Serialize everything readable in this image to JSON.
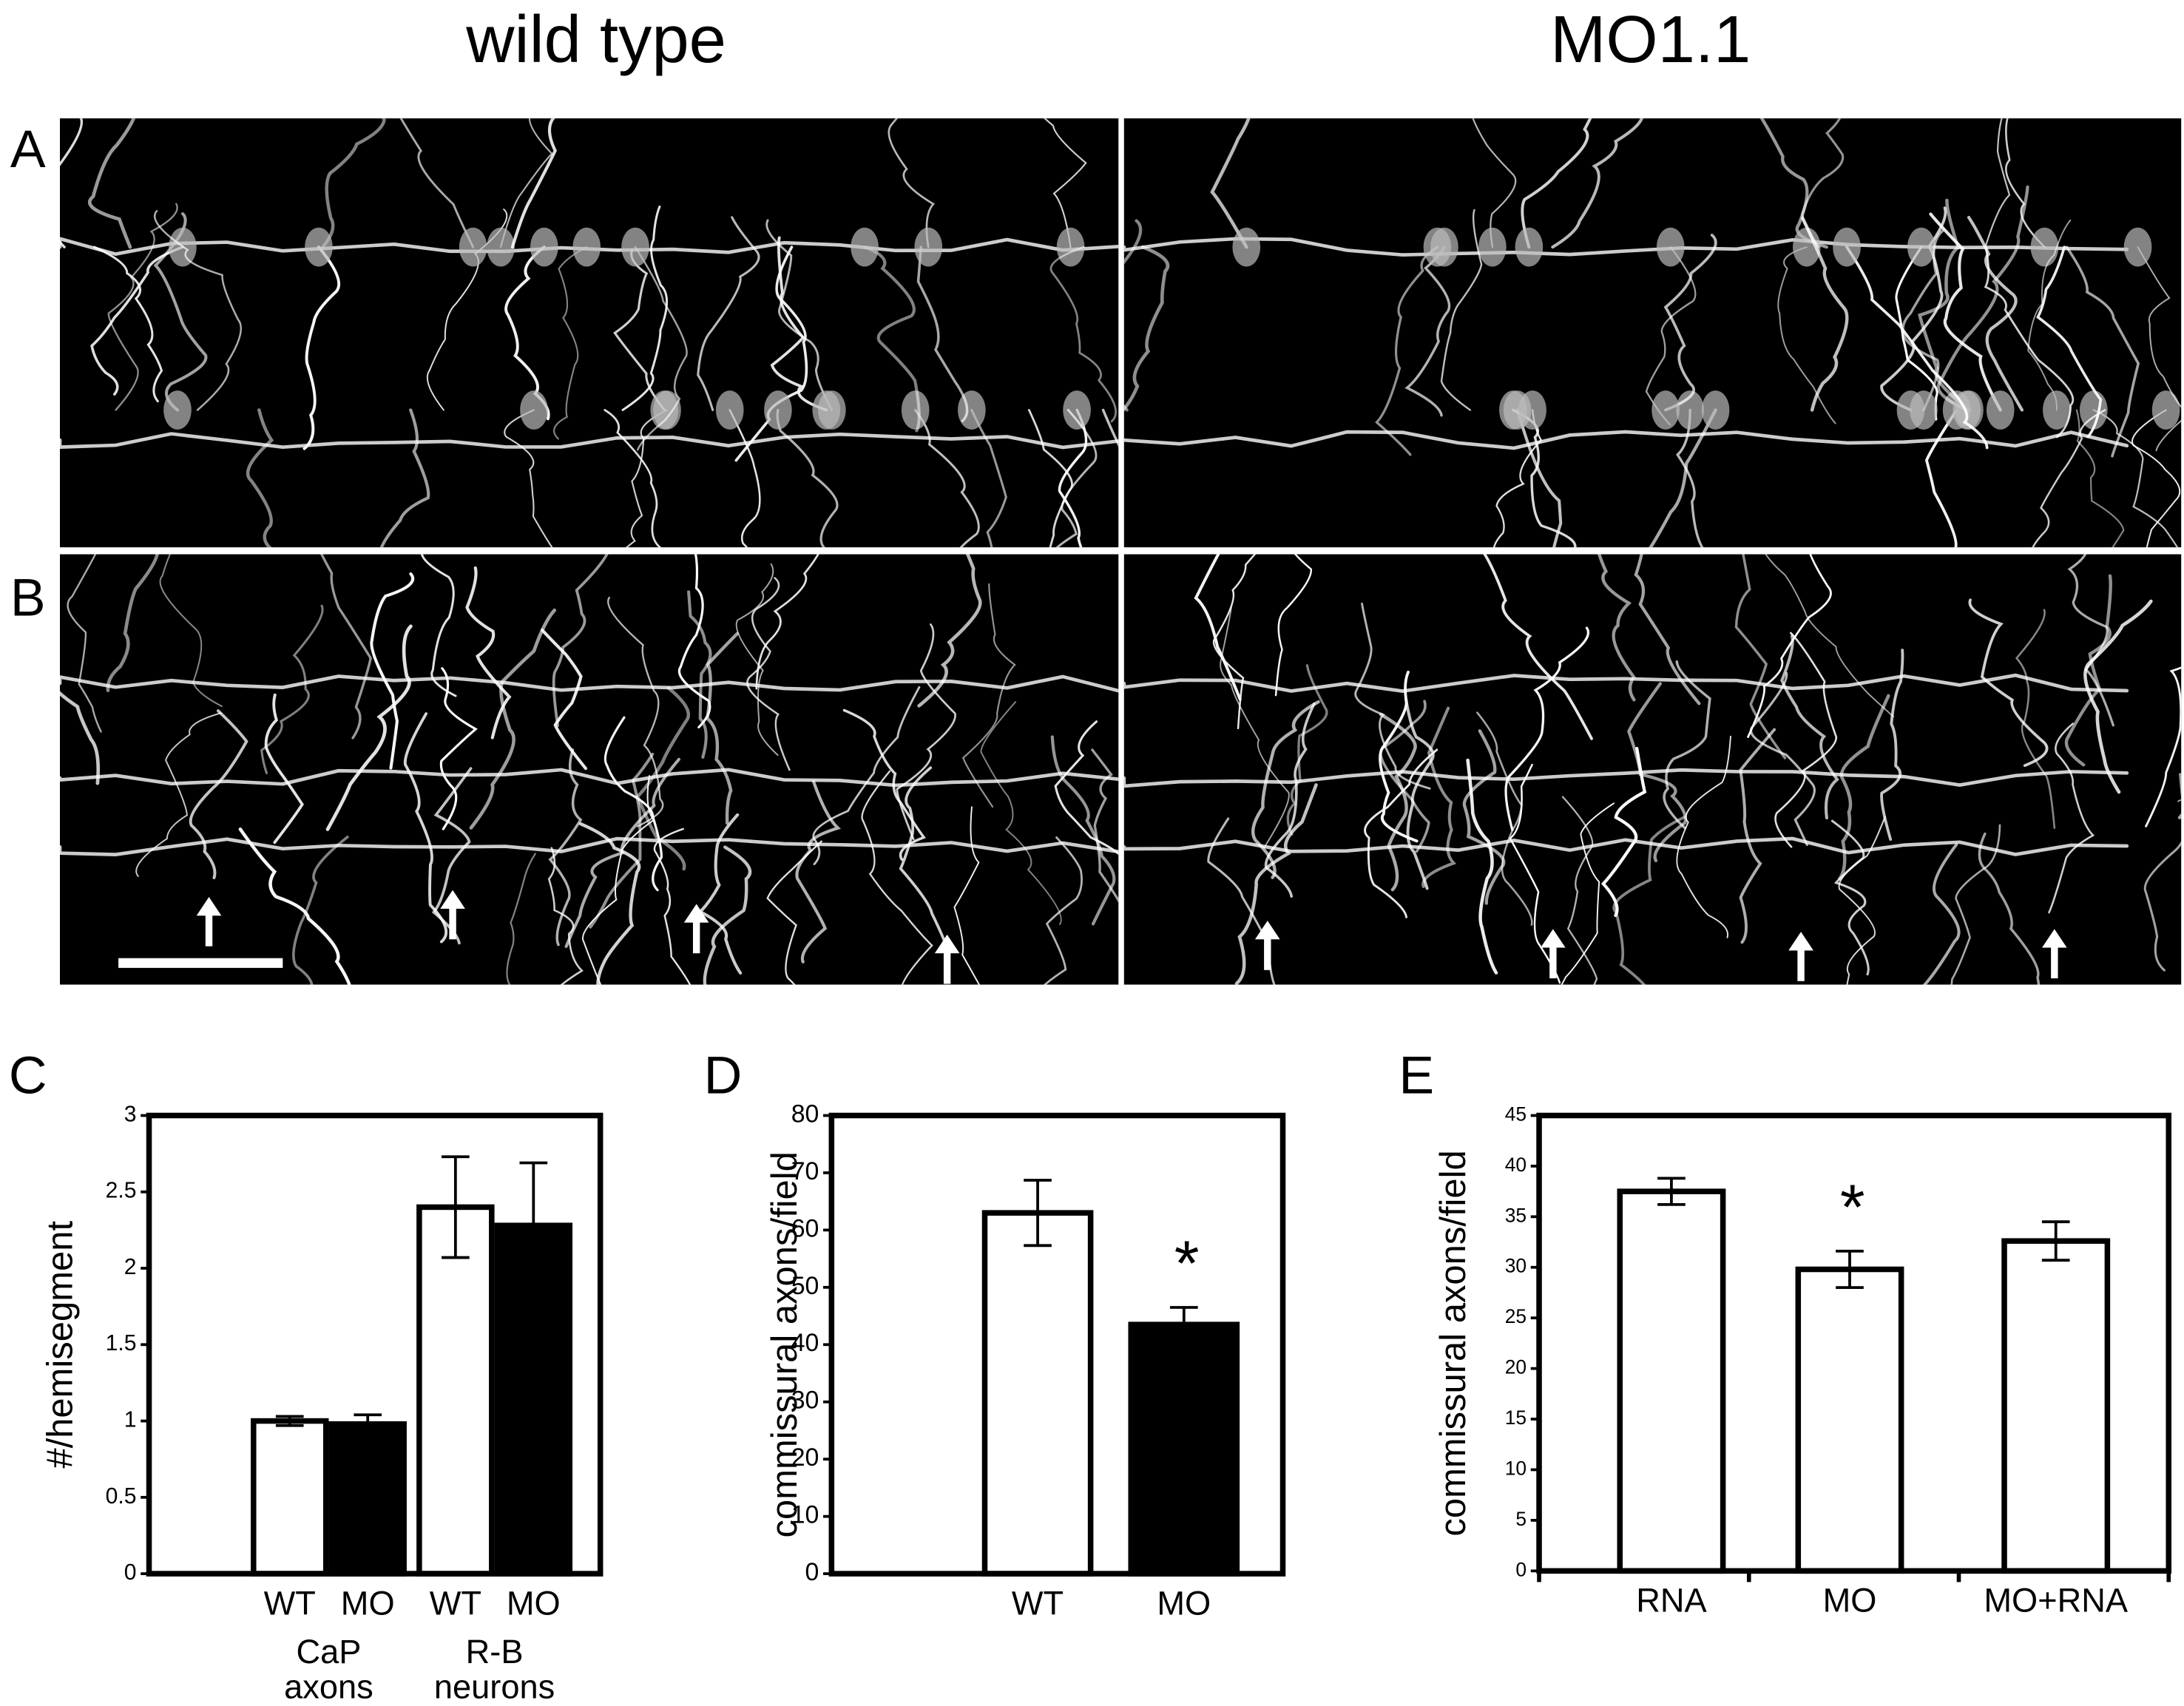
{
  "figure": {
    "columns": [
      "wild type",
      "MO1.1"
    ],
    "panels": [
      "A",
      "B"
    ]
  },
  "chart_data": [
    {
      "type": "bar",
      "panel": "C",
      "ylabel": "#/hemisegment",
      "categories": [
        "WT",
        "MO",
        "WT",
        "MO"
      ],
      "groups": [
        [
          "CaP",
          "axons"
        ],
        [
          "R-B",
          "neurons"
        ]
      ],
      "values": [
        1.0,
        0.98,
        2.4,
        2.28
      ],
      "errors": [
        0.03,
        0.06,
        0.33,
        0.41
      ],
      "colors": [
        "#ffffff",
        "#000000",
        "#ffffff",
        "#000000"
      ],
      "ylim": [
        0,
        3
      ],
      "yticks": [
        0,
        0.5,
        1,
        1.5,
        2,
        2.5,
        3
      ]
    },
    {
      "type": "bar",
      "panel": "D",
      "ylabel": "commissural axons/field",
      "categories": [
        "WT",
        "MO"
      ],
      "values": [
        63,
        43.5
      ],
      "errors": [
        5.7,
        3
      ],
      "colors": [
        "#ffffff",
        "#000000"
      ],
      "annotation": "*",
      "ylim": [
        0,
        80
      ],
      "yticks": [
        0,
        10,
        20,
        30,
        40,
        50,
        60,
        70,
        80
      ]
    },
    {
      "type": "bar",
      "panel": "E",
      "ylabel": "commissural axons/field",
      "categories": [
        "RNA",
        "MO",
        "MO+RNA"
      ],
      "values": [
        37.5,
        29.8,
        32.6
      ],
      "errors": [
        1.3,
        1.8,
        1.9
      ],
      "colors": [
        "#ffffff",
        "#ffffff",
        "#ffffff"
      ],
      "annotation": "*",
      "ylim": [
        0,
        45
      ],
      "yticks": [
        0,
        5,
        10,
        15,
        20,
        25,
        30,
        35,
        40,
        45
      ]
    }
  ]
}
